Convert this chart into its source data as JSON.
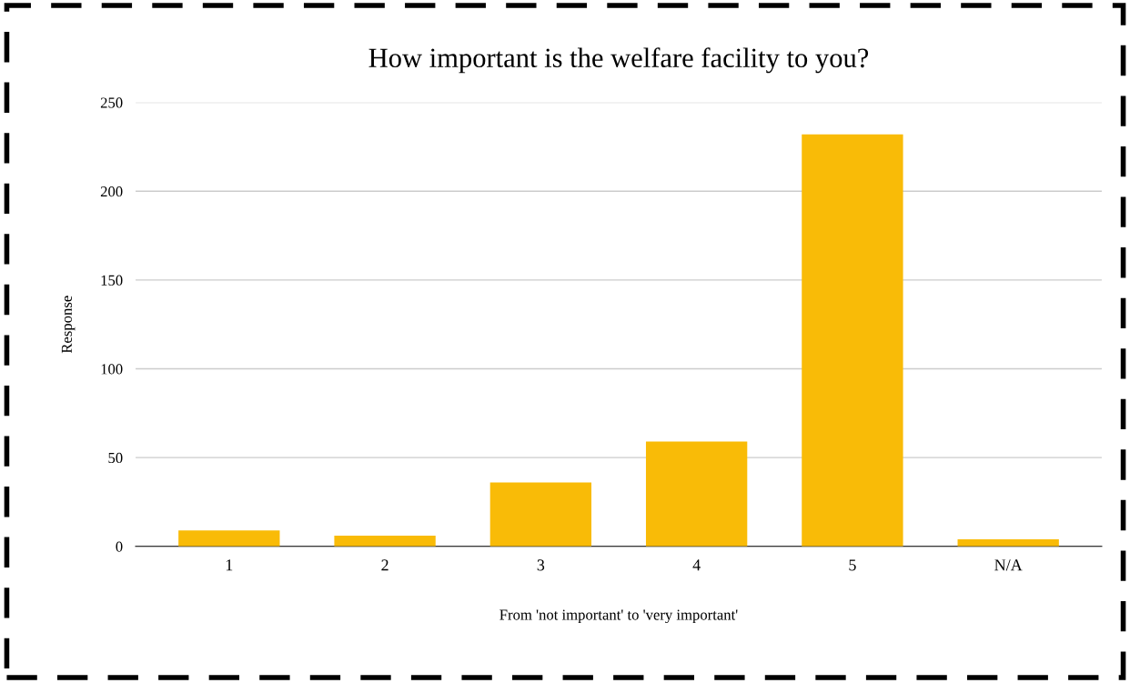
{
  "chart_data": {
    "type": "bar",
    "title": "How important is the welfare facility to you?",
    "xlabel": "From 'not important' to 'very important'",
    "ylabel": "Response",
    "categories": [
      "1",
      "2",
      "3",
      "4",
      "5",
      "N/A"
    ],
    "values": [
      9,
      6,
      36,
      59,
      232,
      4
    ],
    "color": "#f9bb07",
    "ylim": [
      0,
      250
    ],
    "yticks": [
      0,
      50,
      100,
      150,
      200,
      250
    ],
    "grid": "y",
    "legend": false
  }
}
